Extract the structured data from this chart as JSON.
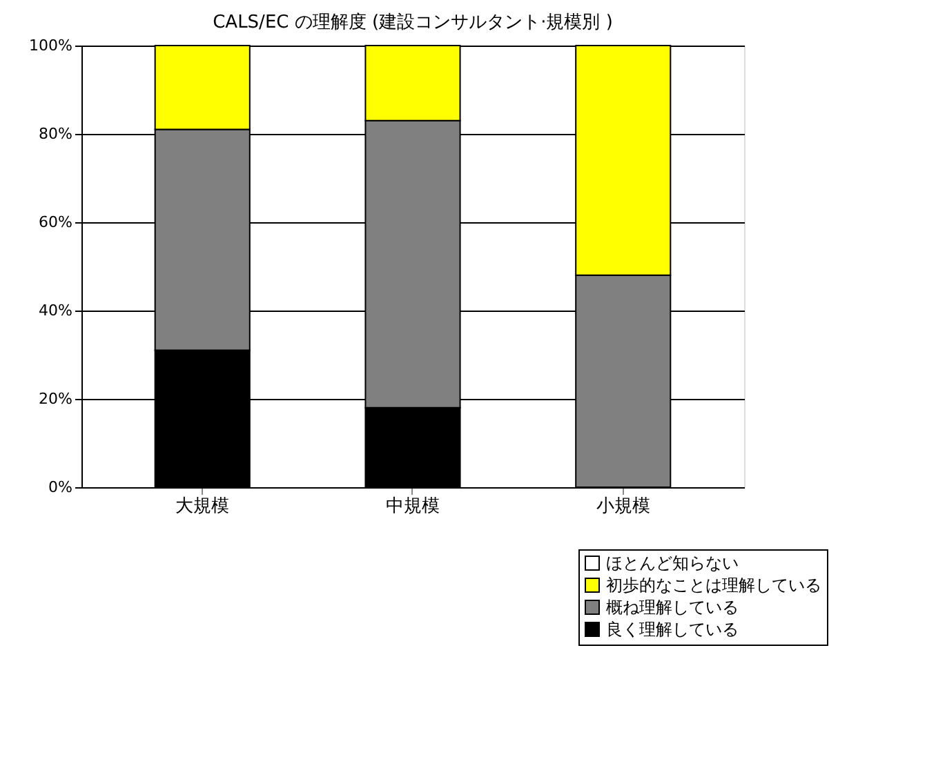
{
  "chart_data": {
    "type": "bar",
    "title": "CALS/EC の理解度 (建設コンサルタント·規模別 )",
    "categories": [
      "大規模",
      "中規模",
      "小規模"
    ],
    "stacked": true,
    "series": [
      {
        "name": "良く理解している",
        "color": "#000000",
        "values": [
          31,
          18,
          0
        ]
      },
      {
        "name": "概ね理解している",
        "color": "#808080",
        "values": [
          50,
          65,
          48
        ]
      },
      {
        "name": "初歩的なことは理解している",
        "color": "#ffff00",
        "values": [
          19,
          17,
          52
        ]
      },
      {
        "name": "ほとんど知らない",
        "color": "#ffffff",
        "values": [
          0,
          0,
          0
        ]
      }
    ],
    "ylim": [
      0,
      100
    ],
    "yticks": [
      {
        "value": 0,
        "label": "0%"
      },
      {
        "value": 20,
        "label": "20%"
      },
      {
        "value": 40,
        "label": "40%"
      },
      {
        "value": 60,
        "label": "60%"
      },
      {
        "value": 80,
        "label": "80%"
      },
      {
        "value": 100,
        "label": "100%"
      }
    ],
    "grid": "y",
    "legend": "bottom right"
  }
}
